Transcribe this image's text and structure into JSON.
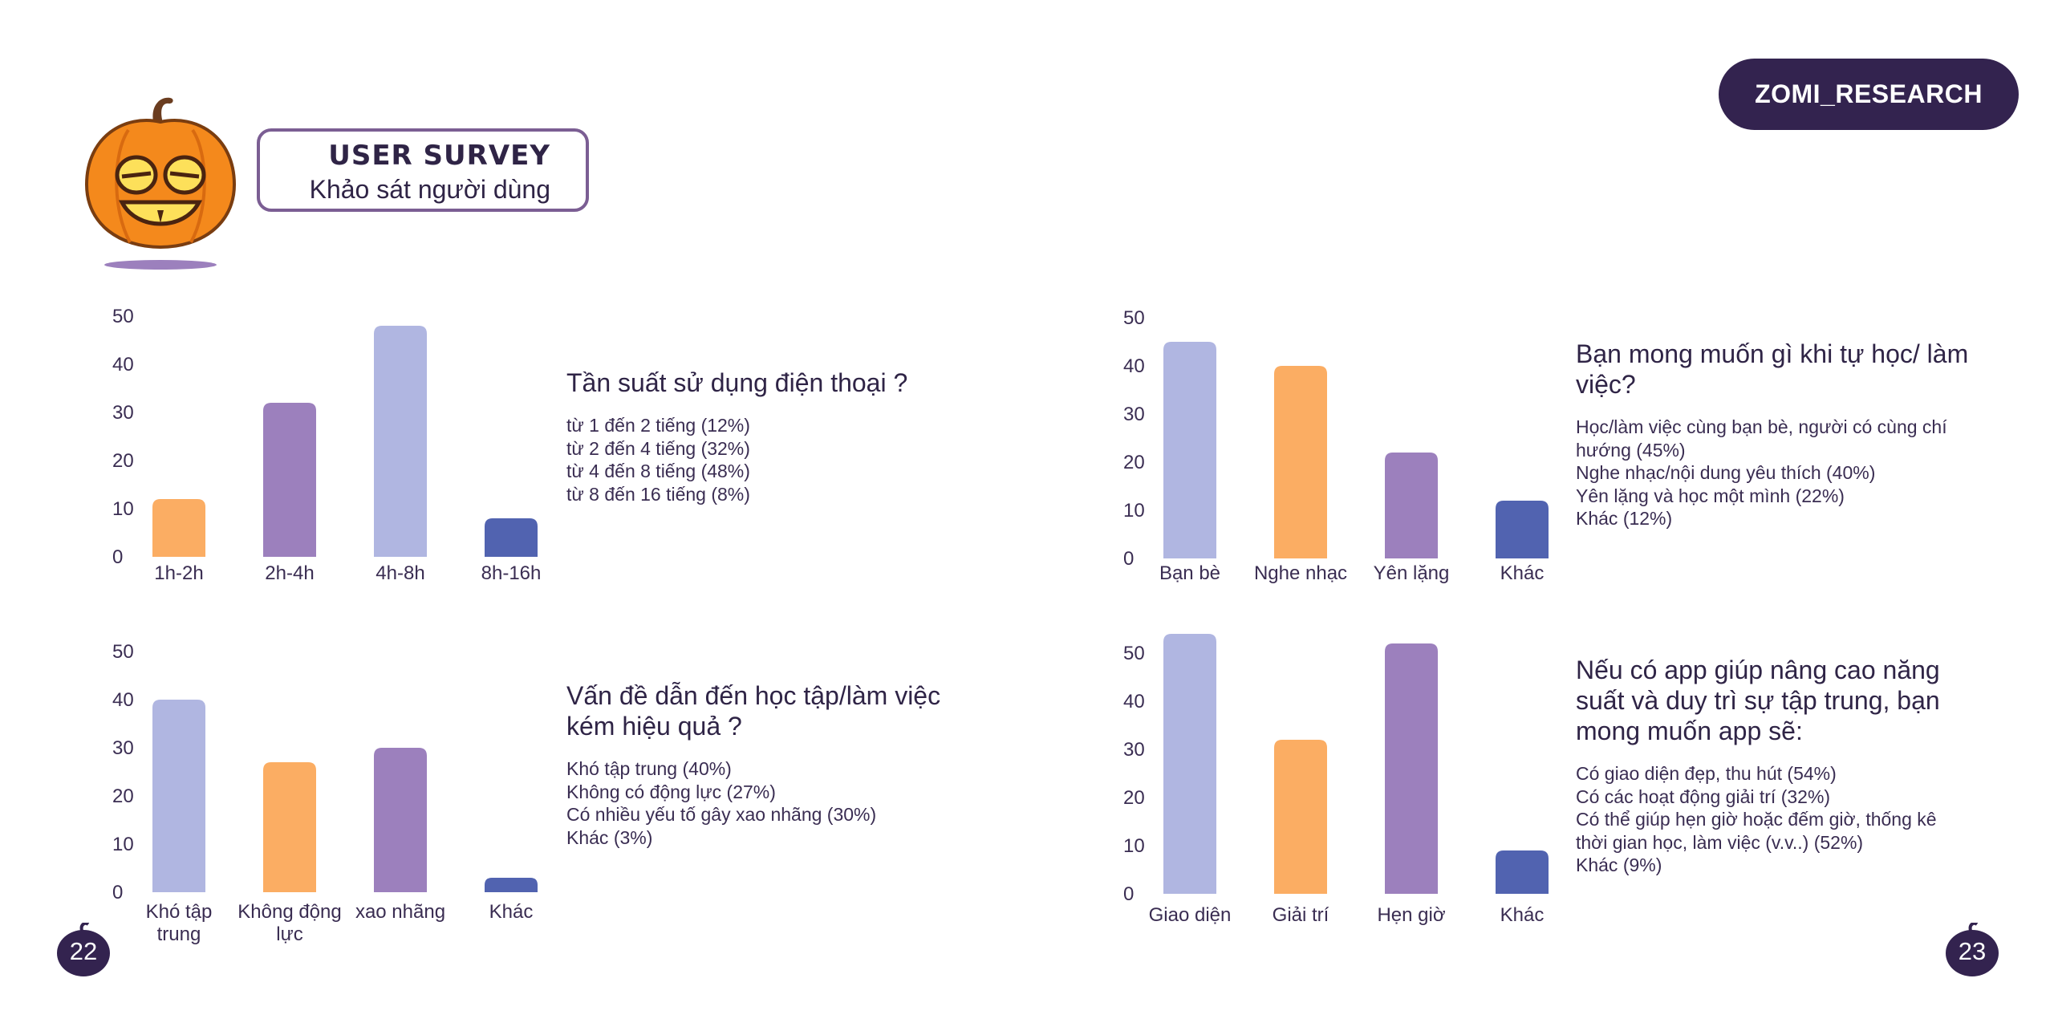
{
  "header": {
    "title": "USER SURVEY",
    "subtitle": "Khảo sát người dùng",
    "brand": "ZOMI_RESEARCH"
  },
  "pages": {
    "left": "22",
    "right": "23"
  },
  "colors": {
    "periwinkle": "#b0b6e1",
    "orange": "#fbad63",
    "purple": "#9c80bd",
    "blue": "#5163b0",
    "dark": "#33234f"
  },
  "icons": {
    "mascot": "pumpkin-icon"
  },
  "panels": [
    {
      "question": "Tần suất sử dụng điện thoại ?",
      "legend": [
        "từ 1 đến 2 tiếng (12%)",
        "từ 2 đến 4 tiếng (32%)",
        "từ 4 đến 8 tiếng (48%)",
        "từ 8 đến 16 tiếng (8%)"
      ]
    },
    {
      "question": "Bạn mong muốn gì khi tự học/ làm việc?",
      "legend": [
        "Học/làm việc cùng bạn bè, người có cùng chí hướng (45%)",
        "Nghe nhạc/nội dung yêu thích (40%)",
        "Yên lặng và học một mình (22%)",
        "Khác (12%)"
      ]
    },
    {
      "question": "Vấn đề dẫn đến học tập/làm việc kém hiệu quả ?",
      "legend": [
        "Khó tập trung (40%)",
        "Không có động lực (27%)",
        "Có nhiều yếu tố gây xao nhãng (30%)",
        "Khác (3%)"
      ]
    },
    {
      "question": "Nếu có app giúp nâng cao năng suất và duy trì sự tập trung, bạn mong muốn app sẽ:",
      "legend": [
        "Có giao diện đẹp, thu hút (54%)",
        "Có các hoạt động giải trí (32%)",
        "Có thể giúp hẹn giờ hoặc đếm giờ, thống kê thời gian học, làm việc (v.v..) (52%)",
        "Khác (9%)"
      ]
    }
  ],
  "chart_data": [
    {
      "type": "bar",
      "categories": [
        "1h-2h",
        "2h-4h",
        "4h-8h",
        "8h-16h"
      ],
      "values": [
        12,
        32,
        48,
        8
      ],
      "colors": [
        "#fbad63",
        "#9c80bd",
        "#b0b6e1",
        "#5163b0"
      ],
      "yticks": [
        "0",
        "10",
        "20",
        "30",
        "40",
        "50"
      ],
      "ylim": [
        0,
        50
      ],
      "grid": false
    },
    {
      "type": "bar",
      "categories": [
        "Bạn bè",
        "Nghe nhạc",
        "Yên lặng",
        "Khác"
      ],
      "values": [
        45,
        40,
        22,
        12
      ],
      "colors": [
        "#b0b6e1",
        "#fbad63",
        "#9c80bd",
        "#5163b0"
      ],
      "yticks": [
        "0",
        "10",
        "20",
        "30",
        "40",
        "50"
      ],
      "ylim": [
        0,
        50
      ],
      "grid": false
    },
    {
      "type": "bar",
      "categories": [
        [
          "Khó tập",
          "trung"
        ],
        [
          "Không động",
          "lực"
        ],
        [
          "xao nhãng"
        ],
        [
          "Khác"
        ]
      ],
      "values": [
        40,
        27,
        30,
        3
      ],
      "colors": [
        "#b0b6e1",
        "#fbad63",
        "#9c80bd",
        "#5163b0"
      ],
      "yticks": [
        "0",
        "10",
        "20",
        "30",
        "40",
        "50"
      ],
      "ylim": [
        0,
        50
      ],
      "grid": false
    },
    {
      "type": "bar",
      "categories": [
        "Giao diện",
        "Giải trí",
        "Hẹn giờ",
        "Khác"
      ],
      "values": [
        54,
        32,
        52,
        9
      ],
      "colors": [
        "#b0b6e1",
        "#fbad63",
        "#9c80bd",
        "#5163b0"
      ],
      "yticks": [
        "0",
        "10",
        "20",
        "30",
        "40",
        "50"
      ],
      "ylim": [
        0,
        50
      ],
      "grid": false
    }
  ]
}
